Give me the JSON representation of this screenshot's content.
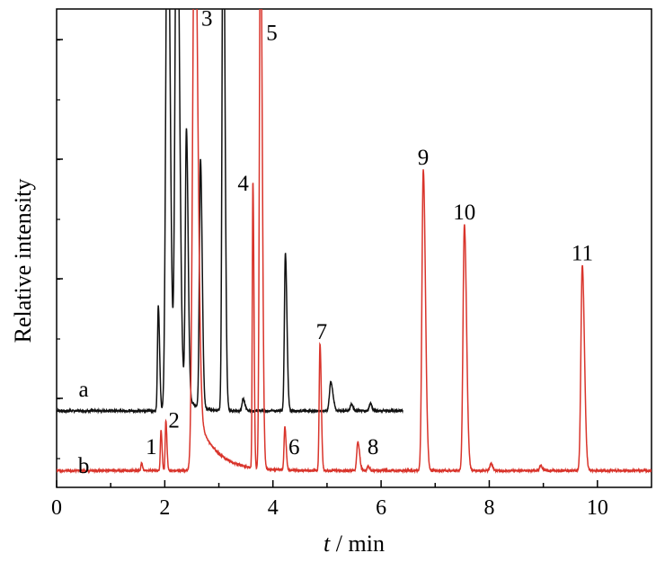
{
  "chart_data": {
    "type": "line",
    "title": "",
    "xlabel_var": "t",
    "xlabel_unit": " / min",
    "ylabel": "Relative intensity",
    "xlim": [
      0,
      11
    ],
    "ylim": [
      0,
      10
    ],
    "xticks": [
      0,
      2,
      4,
      6,
      8,
      10
    ],
    "xtick_labels": [
      "0",
      "2",
      "4",
      "6",
      "8",
      "10"
    ],
    "yticks_shown": false,
    "grid": false,
    "series": [
      {
        "name": "a",
        "color": "#111111",
        "baseline": 1.6,
        "peaks": [
          {
            "t": 1.88,
            "h": 2.2,
            "w": 0.015
          },
          {
            "t": 2.05,
            "h": 12.0,
            "w": 0.03
          },
          {
            "t": 2.22,
            "h": 12.0,
            "w": 0.03
          },
          {
            "t": 2.4,
            "h": 5.6,
            "w": 0.02
          },
          {
            "t": 2.66,
            "h": 5.2,
            "w": 0.02
          },
          {
            "t": 3.08,
            "h": 12.0,
            "w": 0.02
          },
          {
            "t": 3.45,
            "h": 0.25,
            "w": 0.02
          },
          {
            "t": 4.23,
            "h": 3.3,
            "w": 0.018
          },
          {
            "t": 5.07,
            "h": 0.6,
            "w": 0.025
          },
          {
            "t": 5.45,
            "h": 0.15,
            "w": 0.02
          },
          {
            "t": 5.8,
            "h": 0.15,
            "w": 0.02
          }
        ],
        "t_end": 6.4
      },
      {
        "name": "b",
        "color": "#d9342b",
        "baseline": 0.35,
        "peaks": [
          {
            "t": 1.57,
            "h": 0.15,
            "w": 0.012
          },
          {
            "t": 1.93,
            "h": 0.85,
            "w": 0.012
          },
          {
            "t": 2.02,
            "h": 1.05,
            "w": 0.012
          },
          {
            "t": 2.55,
            "h": 12.0,
            "w": 0.035
          },
          {
            "t": 3.63,
            "h": 6.0,
            "w": 0.012
          },
          {
            "t": 3.77,
            "h": 12.0,
            "w": 0.02
          },
          {
            "t": 4.22,
            "h": 0.9,
            "w": 0.015
          },
          {
            "t": 4.87,
            "h": 2.65,
            "w": 0.015
          },
          {
            "t": 5.57,
            "h": 0.6,
            "w": 0.02
          },
          {
            "t": 5.76,
            "h": 0.1,
            "w": 0.015
          },
          {
            "t": 6.78,
            "h": 6.3,
            "w": 0.025
          },
          {
            "t": 7.54,
            "h": 5.15,
            "w": 0.025
          },
          {
            "t": 8.03,
            "h": 0.15,
            "w": 0.02
          },
          {
            "t": 8.95,
            "h": 0.1,
            "w": 0.02
          },
          {
            "t": 9.72,
            "h": 4.3,
            "w": 0.025
          }
        ],
        "t_end": 11
      }
    ],
    "peak_labels": [
      {
        "text": "1",
        "t": 1.75,
        "y": 0.7
      },
      {
        "text": "2",
        "t": 2.17,
        "y": 1.25
      },
      {
        "text": "3",
        "t": 2.78,
        "y": 9.65
      },
      {
        "text": "4",
        "t": 3.45,
        "y": 6.2
      },
      {
        "text": "5",
        "t": 3.98,
        "y": 9.35
      },
      {
        "text": "6",
        "t": 4.39,
        "y": 0.7
      },
      {
        "text": "7",
        "t": 4.9,
        "y": 3.1
      },
      {
        "text": "8",
        "t": 5.85,
        "y": 0.7
      },
      {
        "text": "9",
        "t": 6.78,
        "y": 6.75
      },
      {
        "text": "10",
        "t": 7.54,
        "y": 5.6
      },
      {
        "text": "11",
        "t": 9.72,
        "y": 4.75
      }
    ],
    "trace_labels": [
      {
        "text": "a",
        "t": 0.5,
        "y": 1.9
      },
      {
        "text": "b",
        "t": 0.5,
        "y": 0.3
      }
    ]
  }
}
